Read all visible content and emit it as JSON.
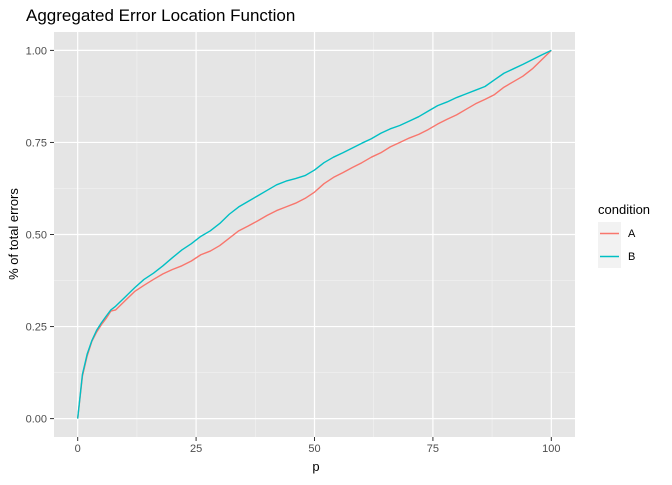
{
  "chart_data": {
    "type": "line",
    "title": "Aggregated Error Location Function",
    "xlabel": "p",
    "ylabel": "% of total errors",
    "xlim": [
      -5,
      105
    ],
    "ylim": [
      -0.05,
      1.05
    ],
    "x_ticks": [
      0,
      25,
      50,
      75,
      100
    ],
    "x_tick_labels": [
      "0",
      "25",
      "50",
      "75",
      "100"
    ],
    "y_ticks": [
      0,
      0.25,
      0.5,
      0.75,
      1.0
    ],
    "y_tick_labels": [
      "0.00",
      "0.25",
      "0.50",
      "0.75",
      "1.00"
    ],
    "grid": true,
    "legend": {
      "title": "condition",
      "position": "right"
    },
    "series": [
      {
        "name": "A",
        "color": "#F8766D",
        "x": [
          0,
          1,
          2,
          3,
          4,
          5,
          6,
          7,
          8,
          10,
          12,
          14,
          16,
          18,
          20,
          22,
          24,
          26,
          28,
          30,
          32,
          34,
          36,
          38,
          40,
          42,
          44,
          46,
          48,
          50,
          52,
          54,
          56,
          58,
          60,
          62,
          64,
          66,
          68,
          70,
          72,
          74,
          76,
          78,
          80,
          82,
          84,
          86,
          88,
          90,
          92,
          94,
          96,
          98,
          100
        ],
        "y": [
          0,
          0.115,
          0.17,
          0.21,
          0.235,
          0.255,
          0.272,
          0.292,
          0.295,
          0.32,
          0.345,
          0.362,
          0.378,
          0.393,
          0.405,
          0.415,
          0.428,
          0.445,
          0.455,
          0.47,
          0.49,
          0.51,
          0.523,
          0.537,
          0.552,
          0.565,
          0.575,
          0.585,
          0.598,
          0.615,
          0.638,
          0.655,
          0.668,
          0.682,
          0.695,
          0.71,
          0.722,
          0.738,
          0.75,
          0.762,
          0.772,
          0.785,
          0.8,
          0.813,
          0.825,
          0.84,
          0.855,
          0.867,
          0.88,
          0.9,
          0.915,
          0.93,
          0.95,
          0.975,
          1.0
        ]
      },
      {
        "name": "B",
        "color": "#00BFC4",
        "x": [
          0,
          1,
          2,
          3,
          4,
          5,
          6,
          7,
          8,
          10,
          12,
          14,
          16,
          18,
          20,
          22,
          24,
          26,
          28,
          30,
          32,
          34,
          36,
          38,
          40,
          42,
          44,
          46,
          48,
          50,
          52,
          54,
          56,
          58,
          60,
          62,
          64,
          66,
          68,
          70,
          72,
          74,
          76,
          78,
          80,
          82,
          84,
          86,
          88,
          90,
          92,
          94,
          96,
          98,
          100
        ],
        "y": [
          0,
          0.12,
          0.175,
          0.212,
          0.24,
          0.26,
          0.278,
          0.295,
          0.305,
          0.33,
          0.355,
          0.378,
          0.395,
          0.415,
          0.437,
          0.458,
          0.475,
          0.495,
          0.51,
          0.53,
          0.555,
          0.575,
          0.59,
          0.605,
          0.62,
          0.635,
          0.645,
          0.652,
          0.66,
          0.675,
          0.695,
          0.71,
          0.722,
          0.735,
          0.748,
          0.76,
          0.775,
          0.787,
          0.796,
          0.808,
          0.82,
          0.835,
          0.85,
          0.86,
          0.872,
          0.882,
          0.892,
          0.902,
          0.92,
          0.938,
          0.95,
          0.962,
          0.975,
          0.988,
          1.0
        ]
      }
    ]
  }
}
